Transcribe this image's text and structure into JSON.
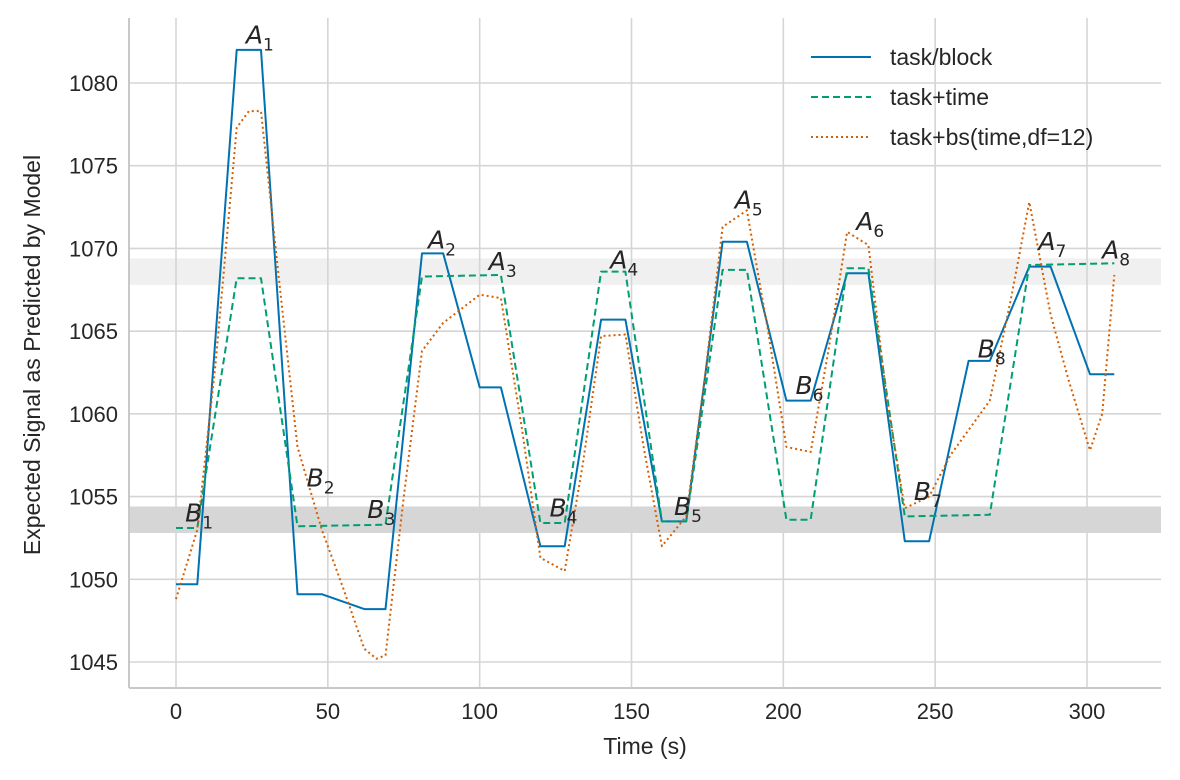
{
  "chart_data": {
    "type": "line",
    "title": "",
    "xlabel": "Time (s)",
    "ylabel": "Expected Signal as Predicted by Model",
    "xlim": [
      -15,
      325
    ],
    "ylim": [
      1043.5,
      1084.0
    ],
    "xticks": [
      0,
      50,
      100,
      150,
      200,
      250,
      300
    ],
    "yticks": [
      1045,
      1050,
      1055,
      1060,
      1065,
      1070,
      1075,
      1080
    ],
    "grid": true,
    "legend": "top-right",
    "bands": [
      {
        "y0": 1067.8,
        "y1": 1069.4,
        "color": "#f0f0f0"
      },
      {
        "y0": 1052.8,
        "y1": 1054.4,
        "color": "#d6d6d6"
      }
    ],
    "series": [
      {
        "name": "task/block",
        "color": "#0072b2",
        "style": "solid",
        "points": [
          [
            0,
            1049.7
          ],
          [
            7,
            1049.7
          ],
          [
            20,
            1082.0
          ],
          [
            28,
            1082.0
          ],
          [
            40,
            1049.1
          ],
          [
            48,
            1049.1
          ],
          [
            62,
            1048.2
          ],
          [
            69,
            1048.2
          ],
          [
            81,
            1069.7
          ],
          [
            88,
            1069.7
          ],
          [
            100,
            1061.6
          ],
          [
            107,
            1061.6
          ],
          [
            120,
            1052.0
          ],
          [
            128,
            1052.0
          ],
          [
            140,
            1065.7
          ],
          [
            148,
            1065.7
          ],
          [
            160,
            1053.5
          ],
          [
            168,
            1053.5
          ],
          [
            180,
            1070.4
          ],
          [
            188,
            1070.4
          ],
          [
            201,
            1060.8
          ],
          [
            209,
            1060.8
          ],
          [
            221,
            1068.5
          ],
          [
            228,
            1068.5
          ],
          [
            240,
            1052.3
          ],
          [
            248,
            1052.3
          ],
          [
            261,
            1063.2
          ],
          [
            268,
            1063.2
          ],
          [
            281,
            1068.9
          ],
          [
            288,
            1068.9
          ],
          [
            301,
            1062.4
          ],
          [
            309,
            1062.4
          ]
        ]
      },
      {
        "name": "task+time",
        "color": "#009e73",
        "style": "dashed",
        "points": [
          [
            0,
            1053.1
          ],
          [
            7,
            1053.1
          ],
          [
            20,
            1068.2
          ],
          [
            28,
            1068.2
          ],
          [
            40,
            1053.2
          ],
          [
            69,
            1053.3
          ],
          [
            81,
            1068.3
          ],
          [
            107,
            1068.4
          ],
          [
            120,
            1053.4
          ],
          [
            128,
            1053.4
          ],
          [
            140,
            1068.6
          ],
          [
            148,
            1068.6
          ],
          [
            160,
            1053.5
          ],
          [
            168,
            1053.5
          ],
          [
            180,
            1068.7
          ],
          [
            188,
            1068.7
          ],
          [
            201,
            1053.6
          ],
          [
            209,
            1053.6
          ],
          [
            221,
            1068.8
          ],
          [
            228,
            1068.8
          ],
          [
            240,
            1053.8
          ],
          [
            268,
            1053.9
          ],
          [
            281,
            1069.0
          ],
          [
            309,
            1069.1
          ]
        ]
      },
      {
        "name": "task+bs(time,df=12)",
        "color": "#d55e00",
        "style": "dotted",
        "points": [
          [
            0,
            1048.8
          ],
          [
            7,
            1053.0
          ],
          [
            13,
            1063.0
          ],
          [
            20,
            1077.3
          ],
          [
            24,
            1078.3
          ],
          [
            28,
            1078.3
          ],
          [
            34,
            1068.0
          ],
          [
            40,
            1058.0
          ],
          [
            48,
            1053.0
          ],
          [
            55,
            1049.5
          ],
          [
            62,
            1045.8
          ],
          [
            66,
            1045.2
          ],
          [
            69,
            1045.4
          ],
          [
            75,
            1055.0
          ],
          [
            81,
            1063.8
          ],
          [
            88,
            1065.5
          ],
          [
            100,
            1067.2
          ],
          [
            107,
            1067.0
          ],
          [
            114,
            1059.0
          ],
          [
            120,
            1051.3
          ],
          [
            128,
            1050.5
          ],
          [
            134,
            1057.0
          ],
          [
            140,
            1064.7
          ],
          [
            148,
            1064.8
          ],
          [
            154,
            1058.0
          ],
          [
            160,
            1052.0
          ],
          [
            168,
            1053.8
          ],
          [
            174,
            1062.0
          ],
          [
            180,
            1071.3
          ],
          [
            188,
            1072.3
          ],
          [
            195,
            1065.0
          ],
          [
            201,
            1058.0
          ],
          [
            209,
            1057.7
          ],
          [
            215,
            1064.0
          ],
          [
            221,
            1071.0
          ],
          [
            228,
            1070.2
          ],
          [
            234,
            1061.0
          ],
          [
            240,
            1054.3
          ],
          [
            248,
            1055.0
          ],
          [
            255,
            1057.5
          ],
          [
            268,
            1060.8
          ],
          [
            275,
            1067.0
          ],
          [
            281,
            1072.8
          ],
          [
            288,
            1066.0
          ],
          [
            294,
            1062.0
          ],
          [
            301,
            1057.8
          ],
          [
            305,
            1060.0
          ],
          [
            309,
            1068.4
          ]
        ]
      }
    ],
    "annotations": [
      {
        "base": "A",
        "sub": "1",
        "x": 23,
        "y": 1082.4
      },
      {
        "base": "A",
        "sub": "2",
        "x": 83,
        "y": 1070.0
      },
      {
        "base": "A",
        "sub": "3",
        "x": 103,
        "y": 1068.7
      },
      {
        "base": "A",
        "sub": "4",
        "x": 143,
        "y": 1068.8
      },
      {
        "base": "A",
        "sub": "5",
        "x": 184,
        "y": 1072.4
      },
      {
        "base": "A",
        "sub": "6",
        "x": 224,
        "y": 1071.1
      },
      {
        "base": "A",
        "sub": "7",
        "x": 284,
        "y": 1069.9
      },
      {
        "base": "A",
        "sub": "8",
        "x": 305,
        "y": 1069.4
      },
      {
        "base": "B",
        "sub": "1",
        "x": 3,
        "y": 1053.5
      },
      {
        "base": "B",
        "sub": "2",
        "x": 43,
        "y": 1055.6
      },
      {
        "base": "B",
        "sub": "3",
        "x": 63,
        "y": 1053.7
      },
      {
        "base": "B",
        "sub": "4",
        "x": 123,
        "y": 1053.8
      },
      {
        "base": "B",
        "sub": "5",
        "x": 164,
        "y": 1053.9
      },
      {
        "base": "B",
        "sub": "6",
        "x": 204,
        "y": 1061.2
      },
      {
        "base": "B",
        "sub": "7",
        "x": 243,
        "y": 1054.8
      },
      {
        "base": "B",
        "sub": "8",
        "x": 264,
        "y": 1063.4
      }
    ]
  }
}
